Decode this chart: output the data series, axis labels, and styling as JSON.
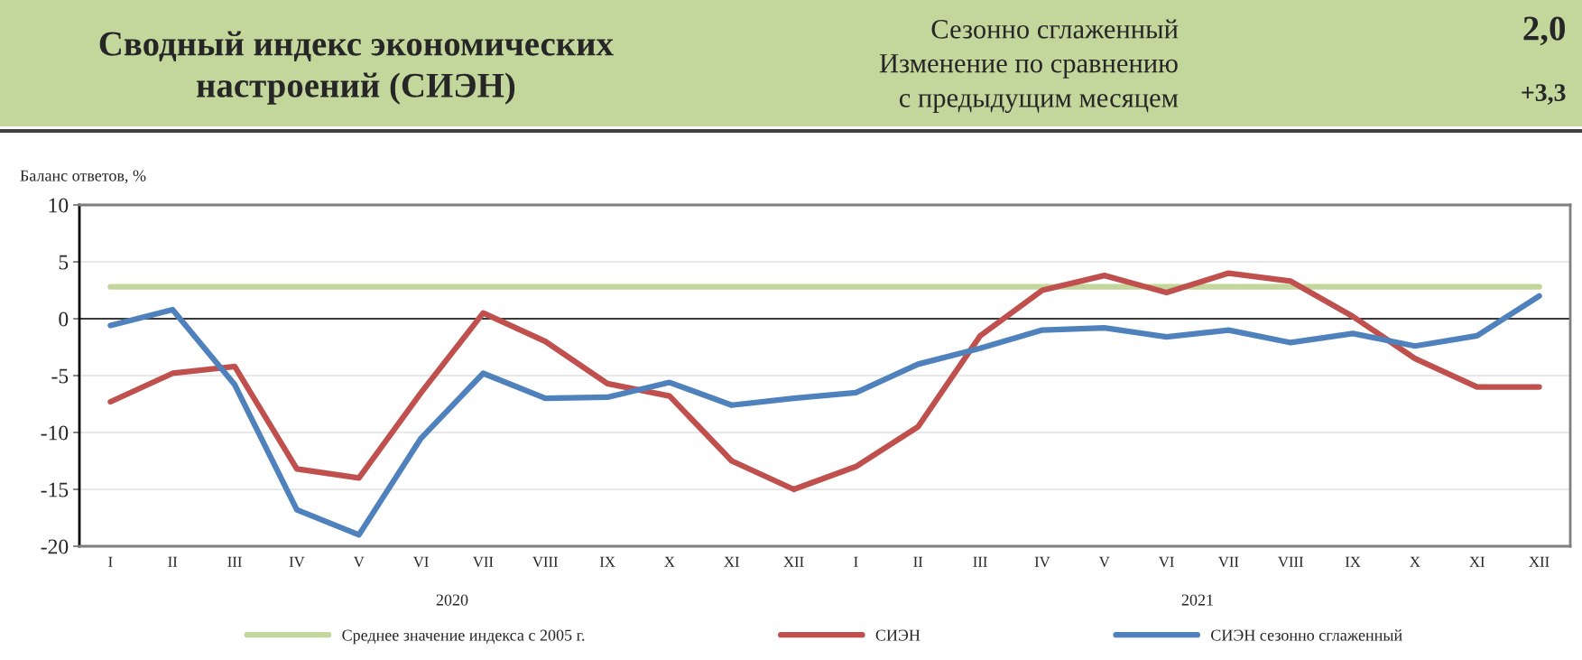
{
  "chart_data": {
    "type": "line",
    "title": "Сводный индекс экономических\nнастроений (СИЭН)",
    "ylabel": "Баланс ответов, %",
    "categories": [
      "I",
      "II",
      "III",
      "IV",
      "V",
      "VI",
      "VII",
      "VIII",
      "IX",
      "X",
      "XI",
      "XII",
      "I",
      "II",
      "III",
      "IV",
      "V",
      "VI",
      "VII",
      "VIII",
      "IX",
      "X",
      "XI",
      "XII"
    ],
    "series": [
      {
        "name": "Среднее значение индекса с 2005 г.",
        "color": "#c3d69b",
        "values": [
          2.8,
          2.8,
          2.8,
          2.8,
          2.8,
          2.8,
          2.8,
          2.8,
          2.8,
          2.8,
          2.8,
          2.8,
          2.8,
          2.8,
          2.8,
          2.8,
          2.8,
          2.8,
          2.8,
          2.8,
          2.8,
          2.8,
          2.8,
          2.8
        ]
      },
      {
        "name": "СИЭН",
        "color": "#c0504d",
        "values": [
          -7.3,
          -4.8,
          -4.2,
          -13.2,
          -14.0,
          -6.5,
          0.5,
          -2.0,
          -5.7,
          -6.8,
          -12.5,
          -15.0,
          -13.0,
          -9.5,
          -1.5,
          2.5,
          3.8,
          2.3,
          4.0,
          3.3,
          0.2,
          -3.5,
          -6.0,
          -6.0
        ]
      },
      {
        "name": "СИЭН сезонно сглаженный",
        "color": "#4f81bd",
        "values": [
          -0.6,
          0.8,
          -5.8,
          -16.8,
          -19.0,
          -10.5,
          -4.8,
          -7.0,
          -6.9,
          -5.6,
          -7.6,
          -7.0,
          -6.5,
          -4.0,
          -2.6,
          -1.0,
          -0.8,
          -1.6,
          -1.0,
          -2.1,
          -1.3,
          -2.4,
          -1.5,
          2.0
        ]
      }
    ],
    "ylim": [
      -20,
      10
    ],
    "yticks": [
      -20,
      -15,
      -10,
      -5,
      0,
      5,
      10
    ],
    "ref_lines": [
      {
        "axis": "y",
        "value": 0,
        "color": "#000000"
      }
    ],
    "grid": "y",
    "legend": "bottom",
    "marker": "none",
    "line_style": "solid",
    "annotations": [
      "Сезонно сглаженный",
      "2,0",
      "Изменение по сравнению\nс предыдущим месяцем",
      "+3,3",
      "2020",
      "2021"
    ]
  }
}
